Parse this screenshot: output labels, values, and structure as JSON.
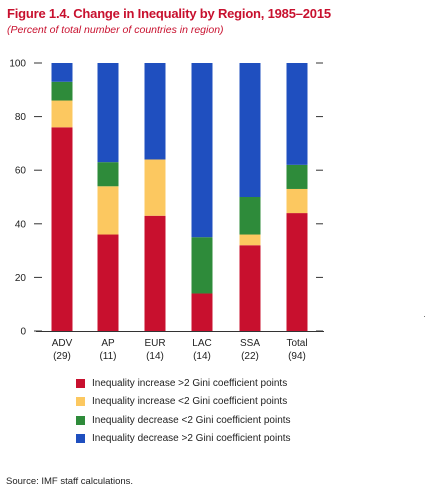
{
  "figure": {
    "title": "Figure 1.4. Change in Inequality by Region, 1985–2015",
    "subtitle": "(Percent of total number of countries in region)",
    "source": "Source: IMF staff calculations."
  },
  "chart_data": {
    "type": "bar",
    "stacked": true,
    "title": "Figure 1.4. Change in Inequality by Region, 1985–2015",
    "subtitle": "(Percent of total number of countries in region)",
    "xlabel": "",
    "ylabel": "",
    "ylim": [
      0,
      100
    ],
    "yticks": [
      0,
      20,
      40,
      60,
      80,
      100
    ],
    "ytick_labels": [
      "0",
      "20",
      "40",
      "60",
      "80",
      "100"
    ],
    "grid": false,
    "legend_position": "bottom",
    "categories": [
      "ADV",
      "AP",
      "EUR",
      "LAC",
      "SSA",
      "Total"
    ],
    "category_counts": [
      "(29)",
      "(11)",
      "(14)",
      "(14)",
      "(22)",
      "(94)"
    ],
    "series": [
      {
        "name": "Inequality increase >2 Gini coefficient points",
        "color": "#c8102e",
        "values": [
          76,
          36,
          43,
          14,
          32,
          44
        ]
      },
      {
        "name": "Inequality increase <2 Gini coefficient points",
        "color": "#fcc860",
        "values": [
          10,
          18,
          21,
          0,
          4,
          9
        ]
      },
      {
        "name": "Inequality decrease <2 Gini coefficient points",
        "color": "#2e8b3a",
        "values": [
          7,
          9,
          0,
          21,
          14,
          9
        ]
      },
      {
        "name": "Inequality decrease >2 Gini coefficient points",
        "color": "#1f4fbf",
        "values": [
          7,
          37,
          36,
          65,
          50,
          38
        ]
      }
    ]
  }
}
